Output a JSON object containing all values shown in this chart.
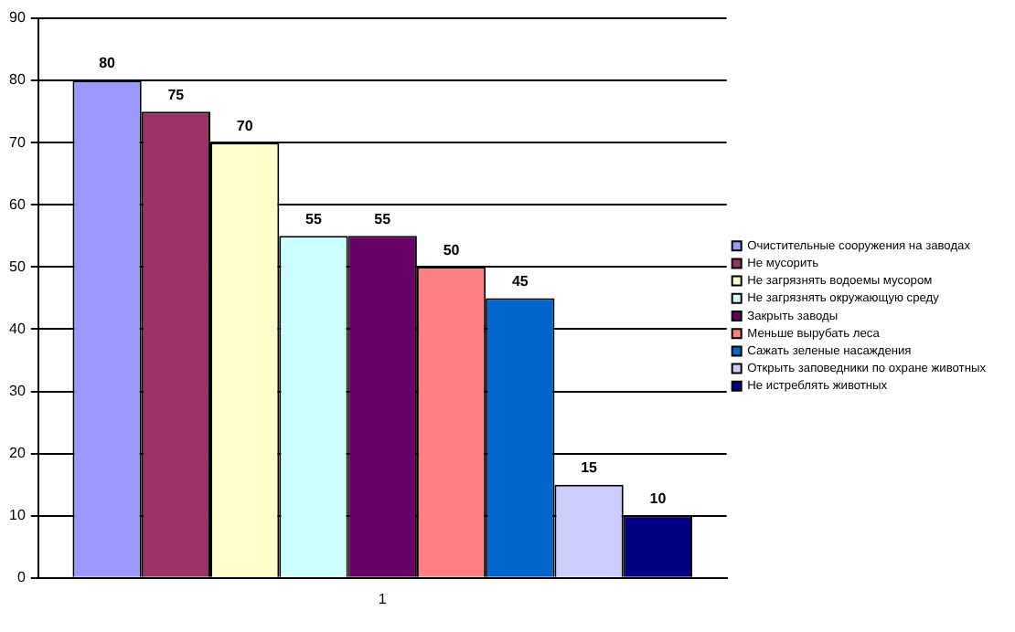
{
  "chart_data": {
    "type": "bar",
    "categories": [
      "1"
    ],
    "series": [
      {
        "name": "Очистительные сооружения на заводах",
        "color": "#9999ff",
        "values": [
          80
        ]
      },
      {
        "name": "Не мусорить",
        "color": "#993366",
        "values": [
          75
        ]
      },
      {
        "name": "Не загрязнять водоемы мусором",
        "color": "#ffffcc",
        "values": [
          70
        ]
      },
      {
        "name": "Не загрязнять окружающую среду",
        "color": "#ccffff",
        "values": [
          55
        ]
      },
      {
        "name": "Закрыть заводы",
        "color": "#660066",
        "values": [
          55
        ]
      },
      {
        "name": "Меньше вырубать леса",
        "color": "#ff8080",
        "values": [
          50
        ]
      },
      {
        "name": "Сажать зеленые насаждения",
        "color": "#0066cc",
        "values": [
          45
        ]
      },
      {
        "name": "Открыть заповедники по охране животных",
        "color": "#ccccff",
        "values": [
          15
        ]
      },
      {
        "name": "Не истреблять животных",
        "color": "#000080",
        "values": [
          10
        ]
      }
    ],
    "ylim": [
      0,
      90
    ],
    "yticks": [
      0,
      10,
      20,
      30,
      40,
      50,
      60,
      70,
      80,
      90
    ],
    "grid": "y",
    "legend": "right",
    "data_labels": true
  }
}
